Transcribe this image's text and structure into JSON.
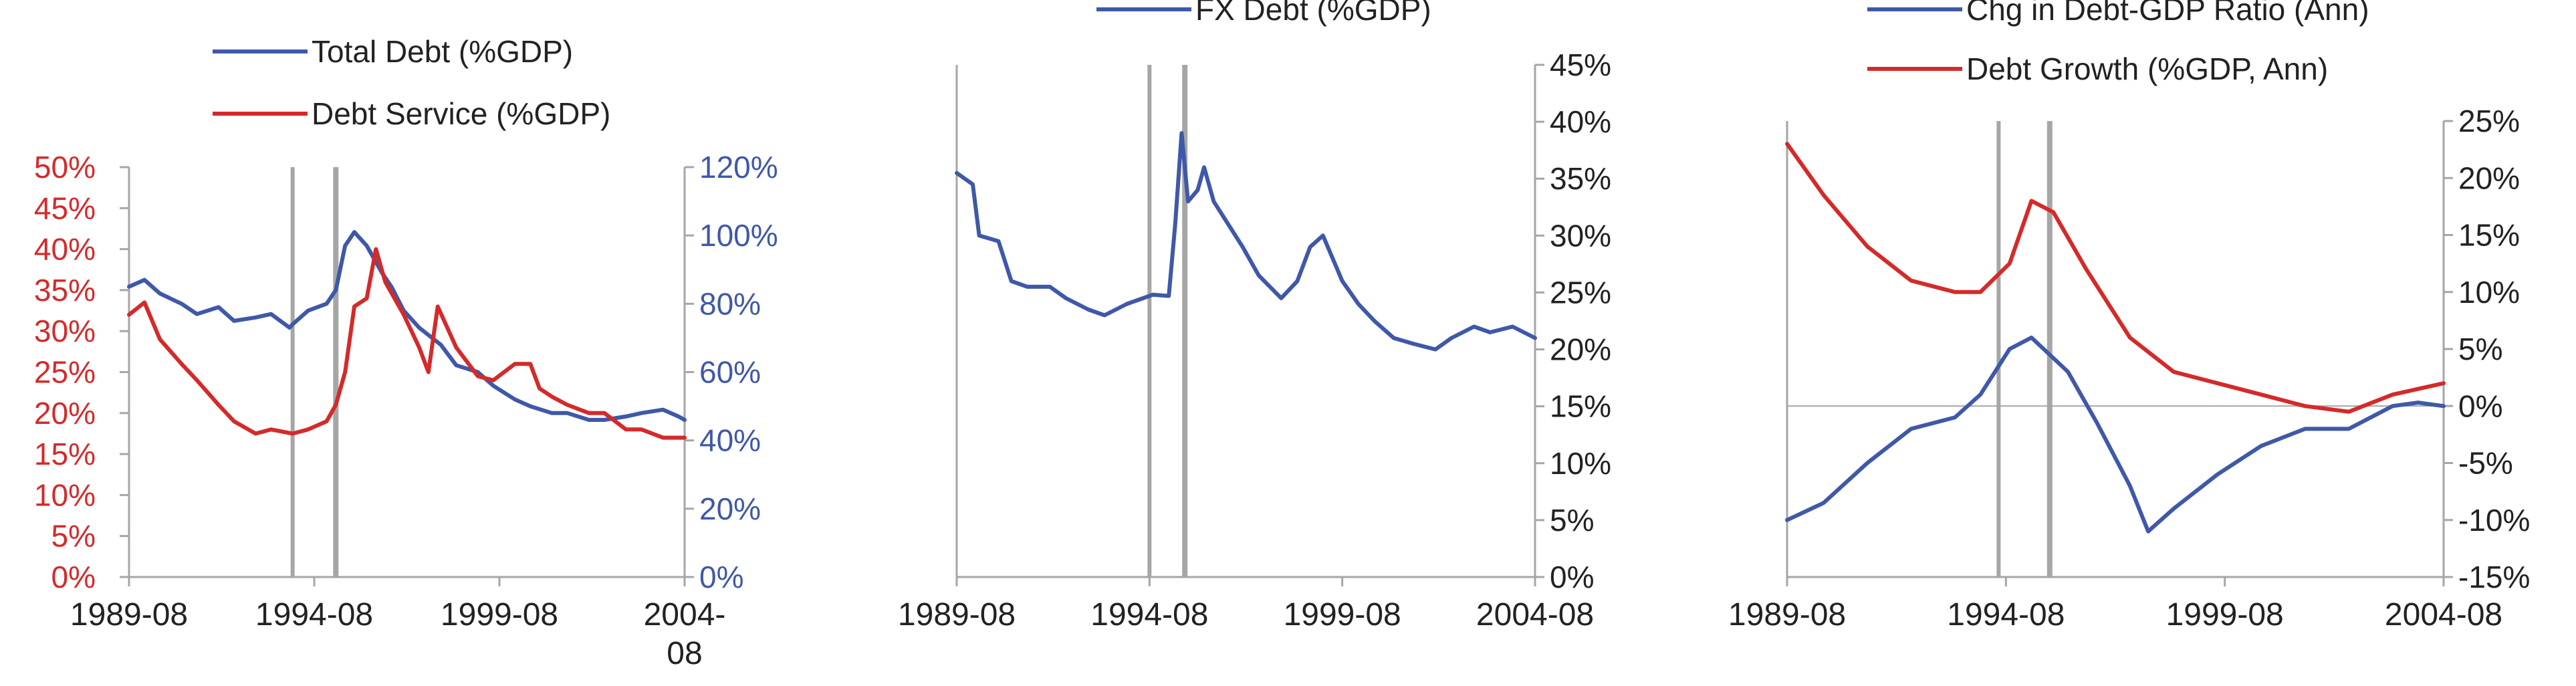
{
  "colors": {
    "blue": "#3f58a8",
    "red": "#d42a2a",
    "axis": "#a6a6a6",
    "text": "#222222"
  },
  "chart_data": [
    {
      "type": "line",
      "title": "",
      "x_tick_labels": [
        "1989-08",
        "1994-08",
        "1999-08",
        "2004-08"
      ],
      "x_range": [
        "1989-08",
        "2004-08"
      ],
      "event_lines": [
        "1994-01",
        "1995-03"
      ],
      "legend_position": "top",
      "left_axis": {
        "ylim": [
          0,
          50
        ],
        "ticks": [
          0,
          5,
          10,
          15,
          20,
          25,
          30,
          35,
          40,
          45,
          50
        ],
        "format": "percent",
        "color": "red"
      },
      "right_axis": {
        "ylim": [
          0,
          120
        ],
        "ticks": [
          0,
          20,
          40,
          60,
          80,
          100,
          120
        ],
        "format": "percent",
        "color": "blue"
      },
      "series": [
        {
          "name": "Total Debt (%GDP)",
          "color": "blue",
          "axis": "right",
          "points": [
            [
              "1989-08",
              85
            ],
            [
              "1990-01",
              87
            ],
            [
              "1990-06",
              83
            ],
            [
              "1991-01",
              80
            ],
            [
              "1991-06",
              77
            ],
            [
              "1992-01",
              79
            ],
            [
              "1992-06",
              75
            ],
            [
              "1993-01",
              76
            ],
            [
              "1993-06",
              77
            ],
            [
              "1993-12",
              73
            ],
            [
              "1994-01",
              74
            ],
            [
              "1994-06",
              78
            ],
            [
              "1994-12",
              80
            ],
            [
              "1995-03",
              84
            ],
            [
              "1995-06",
              97
            ],
            [
              "1995-09",
              101
            ],
            [
              "1996-01",
              97
            ],
            [
              "1996-06",
              89
            ],
            [
              "1996-09",
              85
            ],
            [
              "1997-01",
              78
            ],
            [
              "1997-06",
              73
            ],
            [
              "1998-01",
              68
            ],
            [
              "1998-06",
              62
            ],
            [
              "1999-01",
              60
            ],
            [
              "1999-06",
              56
            ],
            [
              "2000-01",
              52
            ],
            [
              "2000-06",
              50
            ],
            [
              "2001-01",
              48
            ],
            [
              "2001-06",
              48
            ],
            [
              "2002-01",
              46
            ],
            [
              "2002-06",
              46
            ],
            [
              "2003-01",
              47
            ],
            [
              "2003-06",
              48
            ],
            [
              "2004-01",
              49
            ],
            [
              "2004-06",
              47
            ],
            [
              "2004-08",
              46
            ]
          ]
        },
        {
          "name": "Debt Service (%GDP)",
          "color": "red",
          "axis": "left",
          "points": [
            [
              "1989-08",
              32
            ],
            [
              "1990-01",
              33.5
            ],
            [
              "1990-06",
              29
            ],
            [
              "1991-01",
              26
            ],
            [
              "1991-06",
              24
            ],
            [
              "1992-01",
              21
            ],
            [
              "1992-06",
              19
            ],
            [
              "1993-01",
              17.5
            ],
            [
              "1993-06",
              18
            ],
            [
              "1994-01",
              17.5
            ],
            [
              "1994-06",
              18
            ],
            [
              "1994-12",
              19
            ],
            [
              "1995-03",
              21
            ],
            [
              "1995-06",
              25
            ],
            [
              "1995-09",
              33
            ],
            [
              "1996-01",
              34
            ],
            [
              "1996-04",
              40
            ],
            [
              "1996-07",
              36
            ],
            [
              "1997-01",
              32
            ],
            [
              "1997-06",
              28
            ],
            [
              "1997-09",
              25
            ],
            [
              "1997-12",
              33
            ],
            [
              "1998-06",
              28
            ],
            [
              "1999-01",
              24.5
            ],
            [
              "1999-06",
              24
            ],
            [
              "2000-01",
              26
            ],
            [
              "2000-06",
              26
            ],
            [
              "2000-09",
              23
            ],
            [
              "2001-01",
              22
            ],
            [
              "2001-06",
              21
            ],
            [
              "2002-01",
              20
            ],
            [
              "2002-06",
              20
            ],
            [
              "2003-01",
              18
            ],
            [
              "2003-06",
              18
            ],
            [
              "2004-01",
              17
            ],
            [
              "2004-08",
              17
            ]
          ]
        }
      ]
    },
    {
      "type": "line",
      "title": "",
      "x_tick_labels": [
        "1989-08",
        "1994-08",
        "1999-08",
        "2004-08"
      ],
      "x_range": [
        "1989-08",
        "2004-08"
      ],
      "event_lines": [
        "1994-08",
        "1995-07"
      ],
      "legend_position": "top",
      "right_axis": {
        "ylim": [
          0,
          45
        ],
        "ticks": [
          0,
          5,
          10,
          15,
          20,
          25,
          30,
          35,
          40,
          45
        ],
        "format": "percent"
      },
      "series": [
        {
          "name": "FX Debt (%GDP)",
          "color": "blue",
          "axis": "right",
          "points": [
            [
              "1989-08",
              35.5
            ],
            [
              "1990-01",
              34.5
            ],
            [
              "1990-03",
              30
            ],
            [
              "1990-09",
              29.5
            ],
            [
              "1991-01",
              26
            ],
            [
              "1991-06",
              25.5
            ],
            [
              "1992-01",
              25.5
            ],
            [
              "1992-06",
              24.5
            ],
            [
              "1993-01",
              23.5
            ],
            [
              "1993-06",
              23
            ],
            [
              "1994-01",
              24
            ],
            [
              "1994-06",
              24.5
            ],
            [
              "1994-09",
              24.8
            ],
            [
              "1995-02",
              24.7
            ],
            [
              "1995-04",
              31
            ],
            [
              "1995-06",
              39
            ],
            [
              "1995-08",
              33
            ],
            [
              "1995-11",
              34
            ],
            [
              "1996-01",
              36
            ],
            [
              "1996-04",
              33
            ],
            [
              "1997-01",
              29
            ],
            [
              "1997-06",
              26.5
            ],
            [
              "1998-01",
              24.5
            ],
            [
              "1998-06",
              26
            ],
            [
              "1998-10",
              29
            ],
            [
              "1999-02",
              30
            ],
            [
              "1999-08",
              26
            ],
            [
              "2000-01",
              24
            ],
            [
              "2000-06",
              22.5
            ],
            [
              "2000-12",
              21
            ],
            [
              "2001-06",
              20.5
            ],
            [
              "2002-01",
              20
            ],
            [
              "2002-06",
              21
            ],
            [
              "2003-01",
              22
            ],
            [
              "2003-06",
              21.5
            ],
            [
              "2004-01",
              22
            ],
            [
              "2004-08",
              21
            ]
          ]
        }
      ]
    },
    {
      "type": "line",
      "title": "",
      "x_tick_labels": [
        "1989-08",
        "1994-08",
        "1999-08",
        "2004-08"
      ],
      "x_range": [
        "1989-08",
        "2004-08"
      ],
      "event_lines": [
        "1994-06",
        "1995-08"
      ],
      "legend_position": "top",
      "right_axis": {
        "ylim": [
          -15,
          25
        ],
        "ticks": [
          -15,
          -10,
          -5,
          0,
          5,
          10,
          15,
          20,
          25
        ],
        "format": "percent"
      },
      "series": [
        {
          "name": "Chg in Debt-GDP Ratio (Ann)",
          "color": "blue",
          "axis": "right",
          "points": [
            [
              "1989-08",
              -10
            ],
            [
              "1990-06",
              -8.5
            ],
            [
              "1991-06",
              -5
            ],
            [
              "1992-06",
              -2
            ],
            [
              "1993-06",
              -1
            ],
            [
              "1994-01",
              1
            ],
            [
              "1994-09",
              5
            ],
            [
              "1995-03",
              6
            ],
            [
              "1996-01",
              3
            ],
            [
              "1996-09",
              -1.5
            ],
            [
              "1997-06",
              -7
            ],
            [
              "1997-11",
              -11
            ],
            [
              "1998-06",
              -9
            ],
            [
              "1999-06",
              -6
            ],
            [
              "2000-06",
              -3.5
            ],
            [
              "2001-06",
              -2
            ],
            [
              "2002-06",
              -2
            ],
            [
              "2003-06",
              0
            ],
            [
              "2004-01",
              0.3
            ],
            [
              "2004-08",
              0
            ]
          ]
        },
        {
          "name": "Debt Growth (%GDP, Ann)",
          "color": "red",
          "axis": "right",
          "points": [
            [
              "1989-08",
              23
            ],
            [
              "1990-06",
              18.5
            ],
            [
              "1991-06",
              14
            ],
            [
              "1992-06",
              11
            ],
            [
              "1993-06",
              10
            ],
            [
              "1994-01",
              10
            ],
            [
              "1994-09",
              12.5
            ],
            [
              "1995-03",
              18
            ],
            [
              "1995-09",
              17
            ],
            [
              "1996-06",
              12
            ],
            [
              "1997-06",
              6
            ],
            [
              "1998-06",
              3
            ],
            [
              "1999-06",
              2
            ],
            [
              "2000-06",
              1
            ],
            [
              "2001-06",
              0
            ],
            [
              "2002-06",
              -0.5
            ],
            [
              "2003-06",
              1
            ],
            [
              "2004-08",
              2
            ]
          ]
        }
      ]
    }
  ]
}
